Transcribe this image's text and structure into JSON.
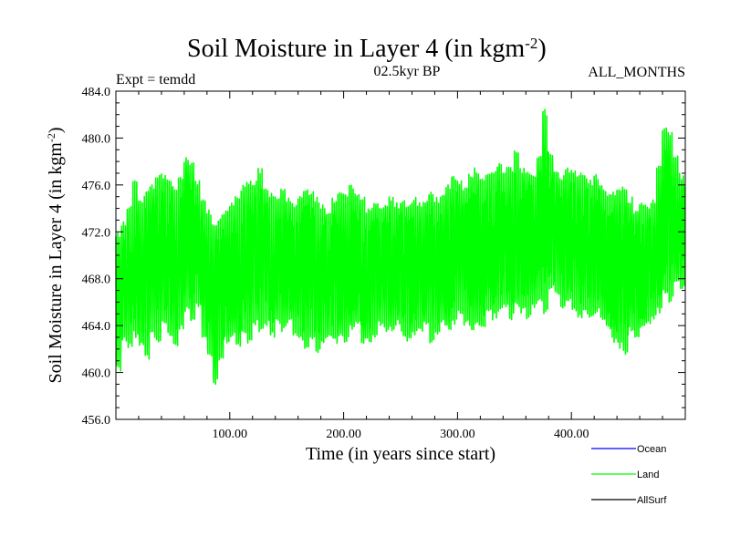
{
  "chart_data": {
    "type": "line",
    "title": "Soil Moisture in Layer 4 (in kgm",
    "title_sup": "-2",
    "title_close": ")",
    "subtitle_left": "Expt = temdd",
    "subtitle_center": "02.5kyr BP",
    "subtitle_right": "ALL_MONTHS",
    "xlabel": "Time (in years since start)",
    "ylabel": "Soil Moisture in Layer 4 (in kgm",
    "ylabel_sup": "-2",
    "ylabel_close": ")",
    "xlim": [
      0,
      500
    ],
    "ylim": [
      456,
      484
    ],
    "xticks": [
      100,
      200,
      300,
      400
    ],
    "xtick_labels": [
      "100.00",
      "200.00",
      "300.00",
      "400.00"
    ],
    "yticks": [
      456,
      460,
      464,
      468,
      472,
      476,
      480,
      484
    ],
    "ytick_labels": [
      "456.0",
      "460.0",
      "464.0",
      "468.0",
      "472.0",
      "476.0",
      "480.0",
      "484.0"
    ],
    "legend": [
      {
        "name": "Ocean",
        "color": "#0000ff"
      },
      {
        "name": "Land",
        "color": "#00ff00"
      },
      {
        "name": "AllSurf",
        "color": "#000000"
      }
    ],
    "series": [
      {
        "name": "Land",
        "color": "#00ff00",
        "x_start": 0,
        "x_step": 5,
        "envelope_note": "annual-mean range per 5-year window",
        "values": [
          [
            460,
            472
          ],
          [
            462.5,
            473
          ],
          [
            462,
            474.5
          ],
          [
            463,
            476.5
          ],
          [
            462,
            475
          ],
          [
            461,
            475.5
          ],
          [
            463,
            476
          ],
          [
            462.5,
            477
          ],
          [
            464,
            477
          ],
          [
            463,
            476.5
          ],
          [
            462,
            476
          ],
          [
            463.5,
            477
          ],
          [
            465,
            478.5
          ],
          [
            464,
            478
          ],
          [
            465.5,
            476.5
          ],
          [
            463,
            475
          ],
          [
            461,
            474
          ],
          [
            459,
            473
          ],
          [
            461,
            473.5
          ],
          [
            462.5,
            474
          ],
          [
            463,
            474.5
          ],
          [
            462,
            475
          ],
          [
            463,
            476
          ],
          [
            462.5,
            476.5
          ],
          [
            464,
            476.5
          ],
          [
            463.5,
            477.5
          ],
          [
            464,
            476
          ],
          [
            463,
            475.5
          ],
          [
            464,
            475
          ],
          [
            463.5,
            476
          ],
          [
            464,
            475
          ],
          [
            463,
            474.5
          ],
          [
            462.5,
            475
          ],
          [
            462,
            476
          ],
          [
            462.5,
            475.5
          ],
          [
            461.5,
            475
          ],
          [
            462.5,
            474.5
          ],
          [
            463,
            474
          ],
          [
            462.5,
            475
          ],
          [
            463,
            475.5
          ],
          [
            462.5,
            475.5
          ],
          [
            463.5,
            476
          ],
          [
            464,
            475.5
          ],
          [
            462.5,
            475
          ],
          [
            462.5,
            474
          ],
          [
            463,
            474.5
          ],
          [
            464,
            474.5
          ],
          [
            463.5,
            474.5
          ],
          [
            463.5,
            475
          ],
          [
            464,
            474.5
          ],
          [
            463,
            475
          ],
          [
            462.5,
            474.5
          ],
          [
            463,
            475
          ],
          [
            463.5,
            474.5
          ],
          [
            464,
            475
          ],
          [
            462.5,
            475.5
          ],
          [
            463,
            475
          ],
          [
            464,
            475.5
          ],
          [
            463.5,
            476
          ],
          [
            464,
            477
          ],
          [
            465,
            476.5
          ],
          [
            464,
            476
          ],
          [
            463.5,
            477
          ],
          [
            464,
            477.5
          ],
          [
            463.5,
            476.5
          ],
          [
            465,
            477
          ],
          [
            464.5,
            477.5
          ],
          [
            465,
            478
          ],
          [
            465.5,
            477.5
          ],
          [
            464.5,
            477.5
          ],
          [
            465.5,
            479
          ],
          [
            465,
            477.5
          ],
          [
            464.5,
            477.5
          ],
          [
            465.5,
            477
          ],
          [
            466,
            478.5
          ],
          [
            465,
            482.5
          ],
          [
            467,
            479
          ],
          [
            466.5,
            477.5
          ],
          [
            465.5,
            477
          ],
          [
            466,
            477.5
          ],
          [
            465,
            477.5
          ],
          [
            464.5,
            477
          ],
          [
            465,
            477
          ],
          [
            464.5,
            476.5
          ],
          [
            465,
            477
          ],
          [
            464.5,
            476
          ],
          [
            463.5,
            475.5
          ],
          [
            462.5,
            475.5
          ],
          [
            462,
            476
          ],
          [
            461.5,
            476
          ],
          [
            463.5,
            475
          ],
          [
            463,
            474
          ],
          [
            463.5,
            474.5
          ],
          [
            464,
            474.5
          ],
          [
            464.5,
            475
          ],
          [
            465,
            478
          ],
          [
            466.5,
            481
          ],
          [
            466,
            480.5
          ],
          [
            467.5,
            478.5
          ],
          [
            467,
            477
          ]
        ]
      }
    ]
  }
}
